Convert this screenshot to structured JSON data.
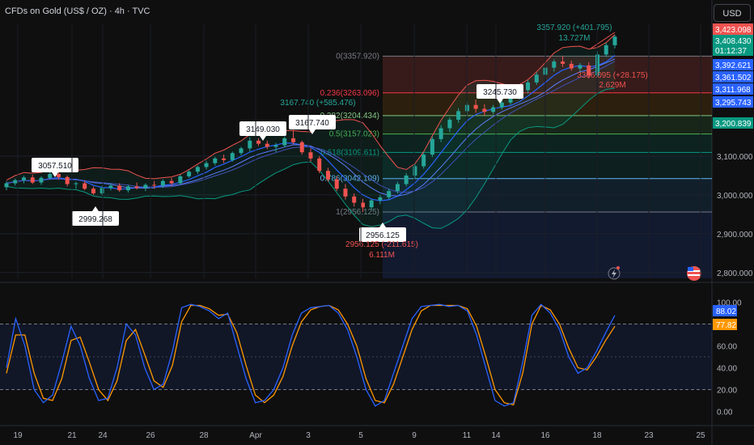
{
  "header": {
    "title": "CFDs on Gold (US$ / OZ) · 4h · TVC",
    "currency": "USD"
  },
  "colors": {
    "bg": "#0f0f0f",
    "up": "#26a69a",
    "down": "#ef5350",
    "blue": "#2962ff",
    "orange": "#ff9800",
    "teal": "#089981"
  },
  "chart_data": [
    {
      "type": "candlestick",
      "price_axis": {
        "ticks": [
          "3,100.000",
          "3,000.000",
          "2,900.000",
          "2,800.000"
        ],
        "ylim": [
          2785,
          3440
        ]
      },
      "x_axis": {
        "ticks": [
          "19",
          "21",
          "24",
          "26",
          "28",
          "Apr",
          "3",
          "5",
          "9",
          "11",
          "14",
          "16",
          "18",
          "23",
          "25"
        ]
      },
      "price_tags": [
        {
          "value": "3,423.098",
          "color": "#ef5350"
        },
        {
          "value": "3,408.430",
          "color": "#089981"
        },
        {
          "value": "01:12:37",
          "color": "#089981"
        },
        {
          "value": "3,392.621",
          "color": "#2962ff"
        },
        {
          "value": "3,361.502",
          "color": "#2962ff"
        },
        {
          "value": "3,311.968",
          "color": "#2962ff"
        },
        {
          "value": "3,295.743",
          "color": "#2962ff"
        },
        {
          "value": "3,200.839",
          "color": "#089981"
        }
      ],
      "fibonacci": [
        {
          "label": "0(3357.920)",
          "price": 3357.92
        },
        {
          "label": "0.236(3263.096)",
          "price": 3263.096
        },
        {
          "label": "0.382(3204.434)",
          "price": 3204.434
        },
        {
          "label": "0.5(3157.023)",
          "price": 3157.023
        },
        {
          "label": "0.618(3109.611)",
          "price": 3109.611
        },
        {
          "label": "0.786(3042.109)",
          "price": 3042.109
        },
        {
          "label": "1(2956.125)",
          "price": 2956.125
        }
      ],
      "callouts": [
        "3057.510",
        "2999.268",
        "3149.030",
        "3167.740",
        "2956.125",
        "3245.730"
      ],
      "annotations": [
        {
          "text": "3357.920 (+401.795)",
          "color": "#26a69a"
        },
        {
          "text": "13.727M",
          "color": "#26a69a"
        },
        {
          "text": "3167.740 (+585.476)",
          "color": "#26a69a"
        },
        {
          "text": "3386.095 (+28.175)",
          "color": "#ef5350"
        },
        {
          "text": "2.629M",
          "color": "#ef5350"
        },
        {
          "text": "2956.125 (-211.615)",
          "color": "#ef5350"
        },
        {
          "text": "6.111M",
          "color": "#ef5350"
        }
      ],
      "ohlc_series": [
        [
          3020,
          3035,
          3012,
          3030
        ],
        [
          3030,
          3042,
          3024,
          3038
        ],
        [
          3038,
          3050,
          3030,
          3045
        ],
        [
          3045,
          3052,
          3028,
          3032
        ],
        [
          3032,
          3048,
          3026,
          3044
        ],
        [
          3044,
          3058,
          3040,
          3054
        ],
        [
          3054,
          3058,
          3040,
          3046
        ],
        [
          3046,
          3050,
          3022,
          3028
        ],
        [
          3028,
          3034,
          3016,
          3030
        ],
        [
          3030,
          3036,
          3012,
          3016
        ],
        [
          3016,
          3022,
          3000,
          3004
        ],
        [
          3004,
          3024,
          2999,
          3018
        ],
        [
          3018,
          3030,
          3012,
          3024
        ],
        [
          3024,
          3030,
          3008,
          3012
        ],
        [
          3012,
          3026,
          3006,
          3022
        ],
        [
          3022,
          3032,
          3014,
          3018
        ],
        [
          3018,
          3030,
          3010,
          3026
        ],
        [
          3026,
          3036,
          3016,
          3024
        ],
        [
          3024,
          3040,
          3018,
          3036
        ],
        [
          3036,
          3044,
          3024,
          3030
        ],
        [
          3030,
          3052,
          3028,
          3048
        ],
        [
          3048,
          3064,
          3044,
          3060
        ],
        [
          3060,
          3076,
          3054,
          3072
        ],
        [
          3072,
          3088,
          3066,
          3082
        ],
        [
          3082,
          3098,
          3076,
          3094
        ],
        [
          3094,
          3104,
          3082,
          3090
        ],
        [
          3090,
          3112,
          3086,
          3108
        ],
        [
          3108,
          3124,
          3102,
          3120
        ],
        [
          3120,
          3149,
          3112,
          3140
        ],
        [
          3140,
          3146,
          3126,
          3132
        ],
        [
          3132,
          3140,
          3118,
          3124
        ],
        [
          3124,
          3134,
          3110,
          3128
        ],
        [
          3128,
          3150,
          3124,
          3146
        ],
        [
          3146,
          3168,
          3130,
          3136
        ],
        [
          3136,
          3140,
          3104,
          3110
        ],
        [
          3110,
          3120,
          3086,
          3094
        ],
        [
          3094,
          3100,
          3056,
          3062
        ],
        [
          3062,
          3070,
          3034,
          3040
        ],
        [
          3040,
          3048,
          3010,
          3016
        ],
        [
          3016,
          3028,
          2988,
          2996
        ],
        [
          2996,
          3004,
          2970,
          2980
        ],
        [
          2980,
          2990,
          2956,
          2968
        ],
        [
          2968,
          2990,
          2962,
          2986
        ],
        [
          2986,
          3000,
          2976,
          2994
        ],
        [
          2994,
          3016,
          2988,
          3010
        ],
        [
          3010,
          3034,
          3004,
          3028
        ],
        [
          3028,
          3056,
          3022,
          3050
        ],
        [
          3050,
          3080,
          3044,
          3074
        ],
        [
          3074,
          3110,
          3068,
          3104
        ],
        [
          3104,
          3150,
          3098,
          3144
        ],
        [
          3144,
          3180,
          3136,
          3172
        ],
        [
          3172,
          3200,
          3162,
          3194
        ],
        [
          3194,
          3224,
          3186,
          3216
        ],
        [
          3216,
          3240,
          3206,
          3232
        ],
        [
          3232,
          3246,
          3212,
          3222
        ],
        [
          3222,
          3234,
          3204,
          3214
        ],
        [
          3214,
          3232,
          3208,
          3226
        ],
        [
          3226,
          3244,
          3220,
          3238
        ],
        [
          3238,
          3258,
          3232,
          3252
        ],
        [
          3252,
          3276,
          3246,
          3270
        ],
        [
          3270,
          3296,
          3262,
          3290
        ],
        [
          3290,
          3316,
          3284,
          3310
        ],
        [
          3310,
          3334,
          3302,
          3328
        ],
        [
          3328,
          3350,
          3318,
          3344
        ],
        [
          3344,
          3358,
          3330,
          3338
        ],
        [
          3338,
          3346,
          3320,
          3326
        ],
        [
          3326,
          3340,
          3316,
          3334
        ],
        [
          3334,
          3342,
          3300,
          3308
        ],
        [
          3308,
          3370,
          3304,
          3362
        ],
        [
          3362,
          3392,
          3356,
          3386
        ],
        [
          3386,
          3412,
          3378,
          3408
        ]
      ],
      "indicator_panel": {
        "type": "stochastic",
        "ticks": [
          "100.00",
          "80.00",
          "60.00",
          "40.00",
          "20.00",
          "0.00"
        ],
        "ylim": [
          -10,
          110
        ],
        "levels": [
          80,
          20
        ],
        "k_value": "88.02",
        "d_value": "77.82",
        "k_series": [
          40,
          85,
          60,
          20,
          8,
          15,
          45,
          78,
          60,
          30,
          10,
          12,
          40,
          80,
          70,
          40,
          20,
          25,
          55,
          95,
          98,
          96,
          92,
          85,
          90,
          60,
          30,
          8,
          10,
          20,
          40,
          70,
          90,
          95,
          96,
          97,
          90,
          75,
          50,
          20,
          5,
          10,
          35,
          60,
          85,
          96,
          97,
          98,
          96,
          97,
          92,
          70,
          40,
          10,
          5,
          8,
          45,
          88,
          98,
          90,
          75,
          50,
          35,
          40,
          55,
          72,
          88
        ],
        "d_series": [
          35,
          70,
          70,
          35,
          12,
          10,
          30,
          65,
          68,
          45,
          20,
          10,
          28,
          65,
          75,
          52,
          28,
          22,
          42,
          82,
          97,
          97,
          94,
          88,
          89,
          72,
          42,
          15,
          8,
          15,
          32,
          60,
          82,
          93,
          96,
          97,
          93,
          80,
          60,
          30,
          10,
          8,
          25,
          50,
          75,
          92,
          97,
          97,
          97,
          97,
          94,
          78,
          50,
          20,
          8,
          6,
          35,
          80,
          97,
          93,
          80,
          58,
          40,
          38,
          50,
          65,
          78
        ]
      }
    }
  ]
}
